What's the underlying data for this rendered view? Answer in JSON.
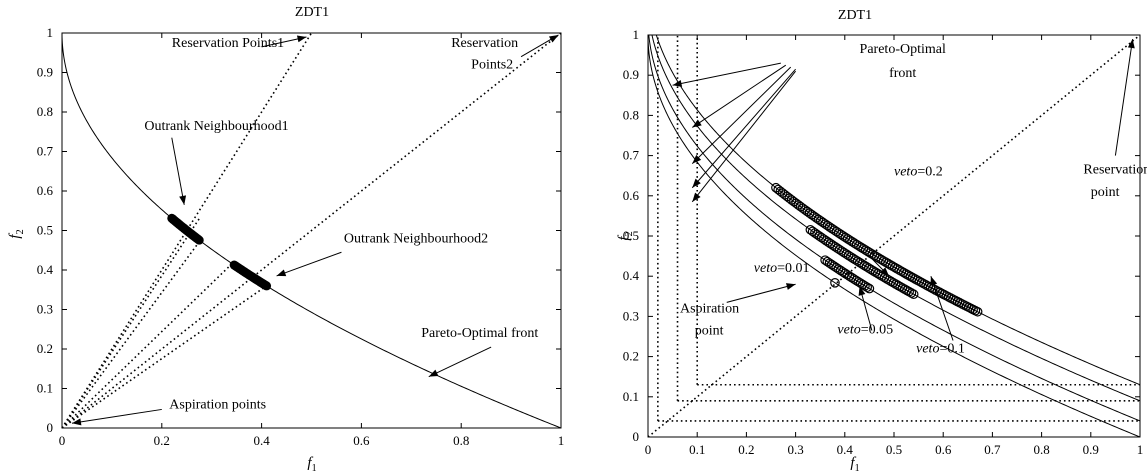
{
  "chart_data": [
    {
      "type": "line",
      "title": "ZDT1",
      "xlabel": "f",
      "xlabel_sub": "1",
      "ylabel": "f",
      "ylabel_sub": "2",
      "xlim": [
        0,
        1
      ],
      "ylim": [
        0,
        1
      ],
      "xticks": [
        0,
        0.2,
        0.4,
        0.6,
        0.8,
        1
      ],
      "xtick_labels": [
        "0",
        "0.2",
        "0.4",
        "0.6",
        "0.8",
        "1"
      ],
      "yticks": [
        0,
        0.1,
        0.2,
        0.3,
        0.4,
        0.5,
        0.6,
        0.7,
        0.8,
        0.9,
        1
      ],
      "ytick_labels": [
        "0",
        "0.1",
        "0.2",
        "0.3",
        "0.4",
        "0.5",
        "0.6",
        "0.7",
        "0.8",
        "0.9",
        "1"
      ],
      "grid": false,
      "front": {
        "formula": "1 - sqrt(x)",
        "x_range": [
          0,
          1
        ]
      },
      "dotted_lines": [
        {
          "x": [
            0,
            0.5
          ],
          "y": [
            0,
            1
          ]
        },
        {
          "x": [
            0,
            1
          ],
          "y": [
            0,
            1
          ]
        },
        {
          "x": [
            0,
            0.275
          ],
          "y": [
            0,
            0.53
          ]
        },
        {
          "x": [
            0,
            0.28
          ],
          "y": [
            0,
            0.48
          ]
        },
        {
          "x": [
            0,
            0.34
          ],
          "y": [
            0,
            0.415
          ]
        },
        {
          "x": [
            0,
            0.41
          ],
          "y": [
            0,
            0.36
          ]
        }
      ],
      "clusters": [
        {
          "x_range": [
            0.22,
            0.275
          ]
        },
        {
          "x_range": [
            0.345,
            0.41
          ]
        }
      ],
      "annotations": [
        {
          "text": "Reservation Points1",
          "x": 0.22,
          "y": 0.965,
          "arrow_from": [
            0.4,
            0.965
          ],
          "arrow_to": [
            0.49,
            0.99
          ]
        },
        {
          "text": "Reservation",
          "x": 0.78,
          "y": 0.965,
          "arrow_from": [
            0.92,
            0.94
          ],
          "arrow_to": [
            0.995,
            0.995
          ]
        },
        {
          "text": "Points2",
          "x": 0.82,
          "y": 0.91
        },
        {
          "text": "Outrank Neighbourhood1",
          "x": 0.165,
          "y": 0.755,
          "arrow_from": [
            0.22,
            0.735
          ],
          "arrow_to": [
            0.245,
            0.565
          ]
        },
        {
          "text": "Outrank Neighbourhood2",
          "x": 0.565,
          "y": 0.47,
          "arrow_from": [
            0.56,
            0.445
          ],
          "arrow_to": [
            0.43,
            0.385
          ]
        },
        {
          "text": "Pareto-Optimal front",
          "x": 0.72,
          "y": 0.23,
          "arrow_from": [
            0.86,
            0.205
          ],
          "arrow_to": [
            0.735,
            0.13
          ]
        },
        {
          "text": "Aspiration points",
          "x": 0.215,
          "y": 0.05,
          "arrow_from": [
            0.2,
            0.047
          ],
          "arrow_to": [
            0.02,
            0.012
          ]
        }
      ]
    },
    {
      "type": "line",
      "title": "ZDT1",
      "xlabel": "f",
      "xlabel_sub": "1",
      "ylabel": "f",
      "ylabel_sub": "2",
      "xlim": [
        0,
        1
      ],
      "ylim": [
        0,
        1
      ],
      "xticks": [
        0,
        0.1,
        0.2,
        0.3,
        0.4,
        0.5,
        0.6,
        0.7,
        0.8,
        0.9,
        1
      ],
      "xtick_labels": [
        "0",
        "0.1",
        "0.2",
        "0.3",
        "0.4",
        "0.5",
        "0.6",
        "0.7",
        "0.8",
        "0.9",
        "1"
      ],
      "yticks": [
        0,
        0.1,
        0.2,
        0.3,
        0.4,
        0.5,
        0.6,
        0.7,
        0.8,
        0.9,
        1
      ],
      "ytick_labels": [
        "0",
        "0.1",
        "0.2",
        "0.3",
        "0.4",
        "0.5",
        "0.6",
        "0.7",
        "0.8",
        "0.9",
        "1"
      ],
      "grid": false,
      "fronts": [
        {
          "offset": 0
        },
        {
          "offset": 0.04
        },
        {
          "offset": 0.09
        },
        {
          "offset": 0.13
        }
      ],
      "dotted_lines": [
        {
          "x": [
            0.02,
            0.02
          ],
          "y": [
            0.04,
            1
          ]
        },
        {
          "x": [
            0.06,
            0.06
          ],
          "y": [
            0.09,
            1
          ]
        },
        {
          "x": [
            0.1,
            0.1
          ],
          "y": [
            0.13,
            1
          ]
        },
        {
          "x": [
            0.02,
            1
          ],
          "y": [
            0.04,
            0.04
          ]
        },
        {
          "x": [
            0.06,
            1
          ],
          "y": [
            0.09,
            0.09
          ]
        },
        {
          "x": [
            0.1,
            1
          ],
          "y": [
            0.13,
            0.13
          ]
        },
        {
          "x": [
            0,
            1
          ],
          "y": [
            0,
            1
          ]
        }
      ],
      "clusters": [
        {
          "label": "veto=0.01",
          "x": [
            0.38
          ],
          "offset": 0.0
        },
        {
          "label": "veto=0.05",
          "x_range": [
            0.36,
            0.45
          ],
          "offset": 0.04
        },
        {
          "label": "veto=0.1",
          "x_range": [
            0.33,
            0.54
          ],
          "offset": 0.09
        },
        {
          "label": "veto=0.2",
          "x_range": [
            0.26,
            0.67
          ],
          "offset": 0.13
        }
      ],
      "annotations": [
        {
          "text": "Pareto-Optimal",
          "x": 0.43,
          "y": 0.955
        },
        {
          "text": "front",
          "x": 0.49,
          "y": 0.895
        },
        {
          "text": "Reservation",
          "x": 0.885,
          "y": 0.655
        },
        {
          "text": "point",
          "x": 0.9,
          "y": 0.6
        },
        {
          "text": "Aspiration",
          "x": 0.065,
          "y": 0.31
        },
        {
          "text": "point",
          "x": 0.095,
          "y": 0.255
        },
        {
          "text_italic": "veto",
          "text": "=0.2",
          "x": 0.5,
          "y": 0.65
        },
        {
          "text_italic": "veto",
          "text": "=0.01",
          "x": 0.215,
          "y": 0.41
        },
        {
          "text_italic": "veto",
          "text": "=0.05",
          "x": 0.385,
          "y": 0.258
        },
        {
          "text_italic": "veto",
          "text": "=0.1",
          "x": 0.545,
          "y": 0.21
        }
      ],
      "arrows": [
        {
          "from": [
            0.27,
            0.93
          ],
          "to": [
            0.05,
            0.875
          ]
        },
        {
          "from": [
            0.28,
            0.925
          ],
          "to": [
            0.09,
            0.77
          ]
        },
        {
          "from": [
            0.29,
            0.92
          ],
          "to": [
            0.09,
            0.68
          ]
        },
        {
          "from": [
            0.3,
            0.915
          ],
          "to": [
            0.09,
            0.62
          ]
        },
        {
          "from": [
            0.3,
            0.91
          ],
          "to": [
            0.09,
            0.585
          ]
        },
        {
          "from": [
            0.95,
            0.7
          ],
          "to": [
            0.985,
            0.99
          ]
        },
        {
          "from": [
            0.16,
            0.335
          ],
          "to": [
            0.3,
            0.38
          ]
        },
        {
          "from": [
            0.45,
            0.45
          ],
          "to": [
            0.49,
            0.4
          ]
        },
        {
          "from": [
            0.455,
            0.265
          ],
          "to": [
            0.43,
            0.375
          ]
        },
        {
          "from": [
            0.62,
            0.24
          ],
          "to": [
            0.575,
            0.4
          ]
        }
      ]
    }
  ]
}
